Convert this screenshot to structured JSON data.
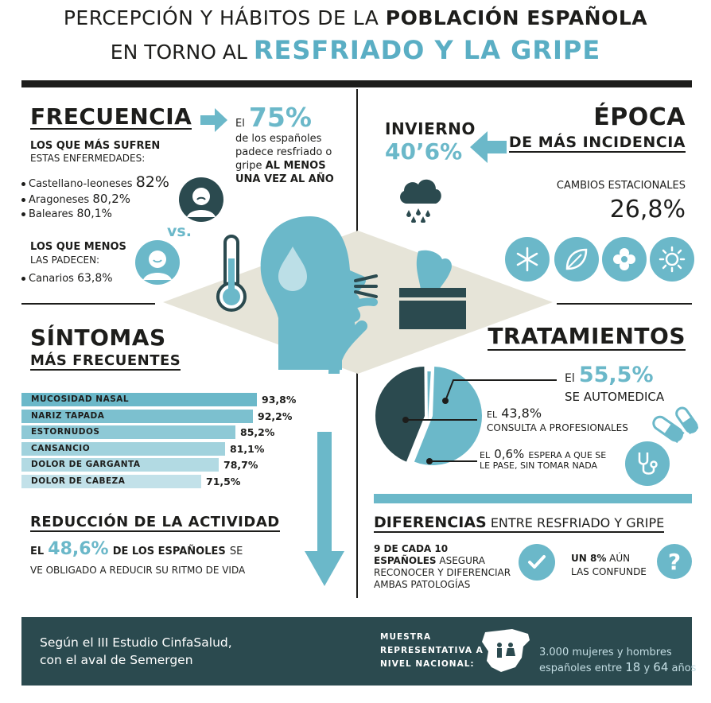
{
  "header": {
    "line1_light": "PERCEPCIÓN Y HÁBITOS DE LA ",
    "line1_bold": "POBLACIÓN ESPAÑOLA",
    "line2_light": "EN TORNO AL ",
    "line2_bold": "RESFRIADO Y LA GRIPE"
  },
  "frecuencia": {
    "title": "FRECUENCIA",
    "most_heading": "LOS QUE MÁS SUFREN",
    "most_sub": "ESTAS ENFERMEDADES:",
    "most_items": [
      {
        "name": "Castellano-leoneses",
        "value": "82%"
      },
      {
        "name": "Aragoneses",
        "value": "80,2%"
      },
      {
        "name": "Baleares",
        "value": "80,1%"
      }
    ],
    "vs": "vs.",
    "least_heading": "LOS QUE MENOS",
    "least_sub": "LAS PADECEN:",
    "least_items": [
      {
        "name": "Canarios",
        "value": "63,8%"
      }
    ],
    "stat_prefix": "El",
    "stat_value": "75%",
    "stat_line1": "de los españoles",
    "stat_line2": "padece resfriado o",
    "stat_line3_light": "gripe ",
    "stat_line3_bold": "AL MENOS",
    "stat_line4": "UNA VEZ AL AÑO"
  },
  "epoca": {
    "title1": "ÉPOCA",
    "title2": "DE MÁS INCIDENCIA",
    "season_label": "INVIERNO",
    "season_value": "40’6%",
    "changes_label": "CAMBIOS ESTACIONALES",
    "changes_value": "26,8%",
    "season_icons": [
      "snowflake-icon",
      "leaf-icon",
      "flower-icon",
      "sun-icon"
    ]
  },
  "sintomas": {
    "title1": "SÍNTOMAS",
    "title2": "MÁS FRECUENTES"
  },
  "chart_data": {
    "type": "bar",
    "categories": [
      "MUCOSIDAD NASAL",
      "NARIZ TAPADA",
      "ESTORNUDOS",
      "CANSANCIO",
      "DOLOR DE GARGANTA",
      "DOLOR DE CABEZA"
    ],
    "values": [
      93.8,
      92.2,
      85.2,
      81.1,
      78.7,
      71.5
    ],
    "value_labels": [
      "93,8%",
      "92,2%",
      "85,2%",
      "81,1%",
      "78,7%",
      "71,5%"
    ],
    "colors": [
      "#6bb8c9",
      "#7cc0cf",
      "#8ec9d6",
      "#a1d2dd",
      "#b2dae3",
      "#c2e1e9"
    ]
  },
  "reduccion": {
    "title": "REDUCCIÓN DE LA ACTIVIDAD",
    "prefix": "EL",
    "value": "48,6%",
    "bold_text": "DE LOS ESPAÑOLES",
    "suffix1": "SE",
    "line2": "VE OBLIGADO A REDUCIR SU RITMO DE VIDA"
  },
  "tratamientos": {
    "title": "TRATAMIENTOS",
    "pie": [
      {
        "label": "SE AUTOMEDICA",
        "value": 55.5,
        "display": "55,5%",
        "color": "#6bb8c9"
      },
      {
        "label": "CONSULTA A PROFESIONALES",
        "value": 43.8,
        "display": "43,8%",
        "color": "#2b4a4f"
      },
      {
        "label": "ESPERA A QUE SE LE PASE, SIN TOMAR NADA",
        "value": 0.6,
        "display": "0,6%",
        "color": "#6bb8c9"
      }
    ],
    "auto_prefix": "El",
    "auto_value": "55,5%",
    "auto_label": "SE AUTOMEDICA",
    "prof_prefix": "EL",
    "prof_value": "43,8%",
    "prof_label": "CONSULTA A PROFESIONALES",
    "wait_prefix": "EL",
    "wait_value": "0,6%",
    "wait_label1": "ESPERA A QUE SE",
    "wait_label2": "LE PASE, SIN TOMAR NADA"
  },
  "diferencias": {
    "title_bold": "DIFERENCIAS",
    "title_light": "ENTRE RESFRIADO Y GRIPE",
    "left_bold1": "9 DE CADA 10",
    "left_bold2": "ESPAÑOLES",
    "left_light2": "ASEGURA",
    "left_line3": "RECONOCER Y DIFERENCIAR",
    "left_line4": "AMBAS PATOLOGÍAS",
    "right_bold": "UN 8%",
    "right_light1": "AÚN",
    "right_line2": "LAS CONFUNDE"
  },
  "footer": {
    "source_line1": "Según el III Estudio CinfaSalud,",
    "source_line2": "con el aval de Semergen",
    "sample_line1": "MUESTRA",
    "sample_line2": "REPRESENTATIVA A",
    "sample_line3": "NIVEL NACIONAL:",
    "detail_line1": "3.000 mujeres y hombres",
    "detail_line2_a": "españoles entre ",
    "detail_line2_b": "18",
    "detail_line2_c": " y ",
    "detail_line2_d": "64",
    "detail_line2_e": " años"
  }
}
